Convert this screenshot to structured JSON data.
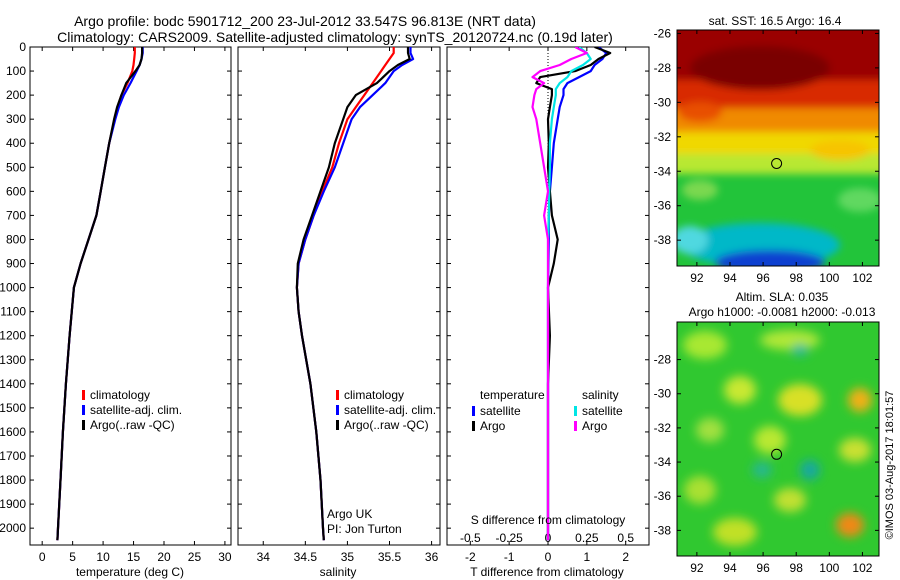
{
  "title_line1": "Argo profile: bodc 5901712_200 23-Jul-2012 33.547S 96.813E (NRT data)",
  "title_line2": "Climatology: CARS2009. Satellite-adjusted climatology: synTS_20120724.nc (0.19d later)",
  "side_text": "©IMOS 03-Aug-2017 18:01:57",
  "colors": {
    "climatology": "#ff0000",
    "satellite": "#0000ff",
    "argo": "#000000",
    "argo_salinity": "#ff00ff",
    "satellite_salinity": "#00e5e5"
  },
  "depth_ticks": [
    "0",
    "100",
    "200",
    "300",
    "400",
    "500",
    "600",
    "700",
    "800",
    "900",
    "1000",
    "1100",
    "1200",
    "1300",
    "1400",
    "1500",
    "1600",
    "1700",
    "1800",
    "1900",
    "2000"
  ],
  "chart_data": [
    {
      "type": "line",
      "xlabel": "temperature (deg C)",
      "xlim": [
        -2,
        31
      ],
      "ylim": [
        2070,
        0
      ],
      "xticks": [
        "0",
        "5",
        "10",
        "15",
        "20",
        "25",
        "30"
      ],
      "xtick_values": [
        0,
        5,
        10,
        15,
        20,
        25,
        30
      ],
      "legend": [
        "climatology",
        "satellite-adj. clim.",
        "Argo(..raw -QC)"
      ],
      "depth": [
        0,
        25,
        50,
        75,
        100,
        150,
        200,
        250,
        300,
        400,
        500,
        600,
        700,
        800,
        900,
        1000,
        1200,
        1400,
        1600,
        1800,
        2000,
        2050
      ],
      "series": [
        {
          "name": "climatology",
          "values": [
            15.2,
            15.2,
            15.1,
            15.0,
            14.8,
            14.0,
            13.0,
            12.4,
            11.9,
            11.0,
            10.3,
            9.6,
            8.9,
            7.6,
            6.3,
            5.2,
            4.5,
            3.9,
            3.4,
            3.0,
            2.6,
            2.5
          ]
        },
        {
          "name": "satellite-adj. clim.",
          "values": [
            16.5,
            16.5,
            16.3,
            16.0,
            15.5,
            14.5,
            13.4,
            12.6,
            12.0,
            11.0,
            10.3,
            9.6,
            8.9,
            7.6,
            6.3,
            5.2,
            4.5,
            3.9,
            3.4,
            3.0,
            2.6,
            2.5
          ]
        },
        {
          "name": "Argo(..raw -QC)",
          "values": [
            16.4,
            16.4,
            16.3,
            16.0,
            15.3,
            13.8,
            13.0,
            12.3,
            11.8,
            11.0,
            10.3,
            9.6,
            8.9,
            7.6,
            6.3,
            5.2,
            4.5,
            3.9,
            3.4,
            3.0,
            2.6,
            2.5
          ]
        }
      ]
    },
    {
      "type": "line",
      "xlabel": "salinity",
      "xlim": [
        33.7,
        36.1
      ],
      "ylim": [
        2070,
        0
      ],
      "xticks": [
        "34",
        "34.5",
        "35",
        "35.5",
        "36"
      ],
      "xtick_values": [
        34,
        34.5,
        35,
        35.5,
        36
      ],
      "legend": [
        "climatology",
        "satellite-adj. clim.",
        "Argo(..raw -QC)"
      ],
      "annotation_line1": "Argo UK",
      "annotation_line2": "PI: Jon Turton",
      "depth": [
        0,
        25,
        50,
        75,
        100,
        150,
        200,
        250,
        300,
        400,
        500,
        600,
        700,
        800,
        900,
        1000,
        1100,
        1200,
        1400,
        1600,
        1800,
        2000,
        2050
      ],
      "series": [
        {
          "name": "climatology",
          "values": [
            35.55,
            35.55,
            35.5,
            35.45,
            35.4,
            35.3,
            35.2,
            35.1,
            35.0,
            34.9,
            34.82,
            34.7,
            34.6,
            34.5,
            34.42,
            34.4,
            34.42,
            34.46,
            34.56,
            34.63,
            34.68,
            34.71,
            34.72
          ]
        },
        {
          "name": "satellite-adj. clim.",
          "values": [
            35.75,
            35.75,
            35.78,
            35.65,
            35.55,
            35.45,
            35.3,
            35.15,
            35.05,
            34.95,
            34.85,
            34.72,
            34.6,
            34.5,
            34.42,
            34.4,
            34.42,
            34.46,
            34.56,
            34.63,
            34.68,
            34.71,
            34.72
          ]
        },
        {
          "name": "Argo(..raw -QC)",
          "values": [
            35.72,
            35.72,
            35.74,
            35.6,
            35.5,
            35.35,
            35.1,
            35.0,
            34.95,
            34.85,
            34.78,
            34.68,
            34.58,
            34.48,
            34.41,
            34.4,
            34.42,
            34.46,
            34.56,
            34.63,
            34.68,
            34.71,
            34.72
          ]
        }
      ]
    },
    {
      "type": "line",
      "xlabel": "T difference from climatology",
      "xlabel_top": "S difference from climatology",
      "xlim": [
        -2.6,
        2.6
      ],
      "ylim": [
        2070,
        0
      ],
      "xticks": [
        "-2",
        "-1",
        "0",
        "1",
        "2"
      ],
      "xtick_values": [
        -2,
        -1,
        0,
        1,
        2
      ],
      "top_ticks": [
        "-0.5",
        "-0.25",
        "0",
        "0.25",
        "0.5"
      ],
      "top_tick_values": [
        -2,
        -1,
        0,
        1,
        2
      ],
      "legend_left_title": "temperature",
      "legend_left": [
        "satellite",
        "Argo"
      ],
      "legend_right_title": "salinity",
      "legend_right": [
        "satellite",
        "Argo"
      ],
      "depth": [
        0,
        25,
        50,
        75,
        100,
        125,
        150,
        175,
        200,
        250,
        300,
        400,
        500,
        600,
        700,
        800,
        900,
        1000,
        1200,
        1400,
        1600,
        1800,
        2000,
        2050
      ],
      "series": [
        {
          "name": "temperature satellite",
          "values": [
            1.3,
            1.5,
            1.4,
            1.2,
            1.1,
            0.8,
            0.5,
            0.4,
            0.4,
            0.3,
            0.25,
            0.15,
            0.1,
            0.05,
            0.02,
            0.02,
            0.01,
            0,
            0,
            0,
            0,
            0,
            0,
            0
          ]
        },
        {
          "name": "temperature Argo",
          "values": [
            1.2,
            1.6,
            1.3,
            1.1,
            0.7,
            -0.2,
            -0.3,
            0.1,
            0.1,
            0.05,
            0.0,
            0.02,
            0.0,
            0.05,
            0.1,
            0.25,
            0.15,
            0.0,
            0.05,
            0.0,
            0.0,
            0.0,
            0.0,
            0.0
          ]
        },
        {
          "name": "salinity satellite",
          "values": [
            0.8,
            1.0,
            1.1,
            0.9,
            0.6,
            0.5,
            0.3,
            0.2,
            0.2,
            0.15,
            0.1,
            0.05,
            0.05,
            0.03,
            0.02,
            0.0,
            0.0,
            0.0,
            0.0,
            0.0,
            0.0,
            0.0,
            0.0,
            0.0
          ]
        },
        {
          "name": "salinity Argo",
          "values": [
            0.7,
            1.0,
            0.6,
            0.3,
            -0.2,
            -0.4,
            -0.1,
            -0.3,
            -0.35,
            -0.4,
            -0.3,
            -0.2,
            -0.1,
            0.0,
            -0.1,
            0.0,
            0.0,
            0.0,
            0.0,
            0.0,
            0.0,
            0.0,
            0.0,
            0.0
          ]
        }
      ]
    },
    {
      "type": "heatmap",
      "title": "sat. SST: 16.5 Argo: 16.4",
      "xlim": [
        90.8,
        103
      ],
      "ylim": [
        -39.5,
        -25.8
      ],
      "xticks": [
        "92",
        "94",
        "96",
        "98",
        "100",
        "102"
      ],
      "xtick_values": [
        92,
        94,
        96,
        98,
        100,
        102
      ],
      "yticks": [
        "-26",
        "-28",
        "-30",
        "-32",
        "-34",
        "-36",
        "-38"
      ],
      "ytick_values": [
        -26,
        -28,
        -30,
        -32,
        -34,
        -36,
        -38
      ],
      "marker": [
        96.813,
        -33.547
      ]
    },
    {
      "type": "heatmap",
      "title_line1": "Altim. SLA: 0.035",
      "title_line2": "Argo h1000: -0.0081 h2000: -0.013",
      "xlim": [
        90.8,
        103
      ],
      "ylim": [
        -39.5,
        -25.8
      ],
      "xticks": [
        "92",
        "94",
        "96",
        "98",
        "100",
        "102"
      ],
      "xtick_values": [
        92,
        94,
        96,
        98,
        100,
        102
      ],
      "yticks": [
        "-28",
        "-30",
        "-32",
        "-34",
        "-36",
        "-38"
      ],
      "ytick_values": [
        -28,
        -30,
        -32,
        -34,
        -36,
        -38
      ],
      "marker": [
        96.813,
        -33.547
      ]
    }
  ]
}
